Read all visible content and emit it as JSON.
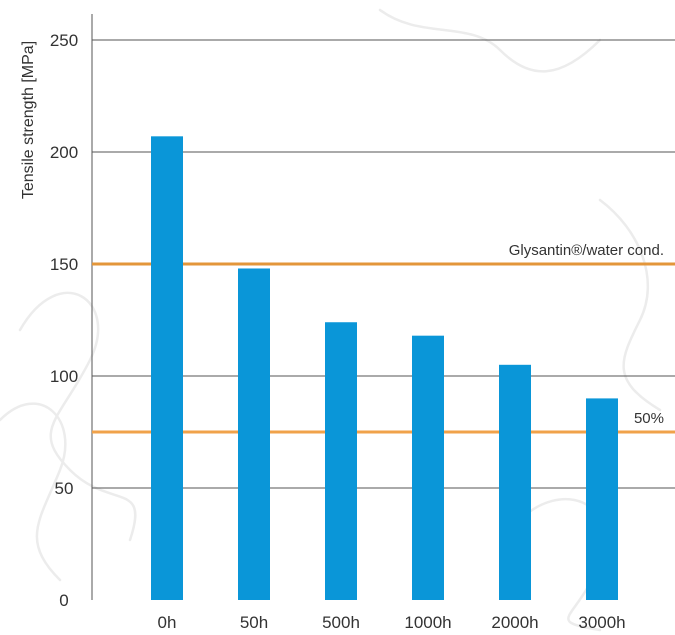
{
  "chart_data": {
    "type": "bar",
    "categories": [
      "0h",
      "50h",
      "500h",
      "1000h",
      "2000h",
      "3000h"
    ],
    "series": [
      {
        "values": [
          207,
          148,
          124,
          118,
          105,
          90
        ]
      }
    ],
    "ylabel": "Tensile strength [MPa]",
    "ylim": [
      0,
      250
    ],
    "yticks": [
      0,
      50,
      100,
      150,
      200,
      250
    ],
    "grid": true,
    "reference_lines": [
      {
        "label": "Glysantin®/water cond.",
        "value": 150,
        "color": "#e3963a"
      },
      {
        "label": "50%",
        "value": 75,
        "color": "#f0a24a"
      }
    ],
    "colors": {
      "bar": "#0a96d8",
      "grid": "#555555",
      "text": "#333333"
    }
  }
}
